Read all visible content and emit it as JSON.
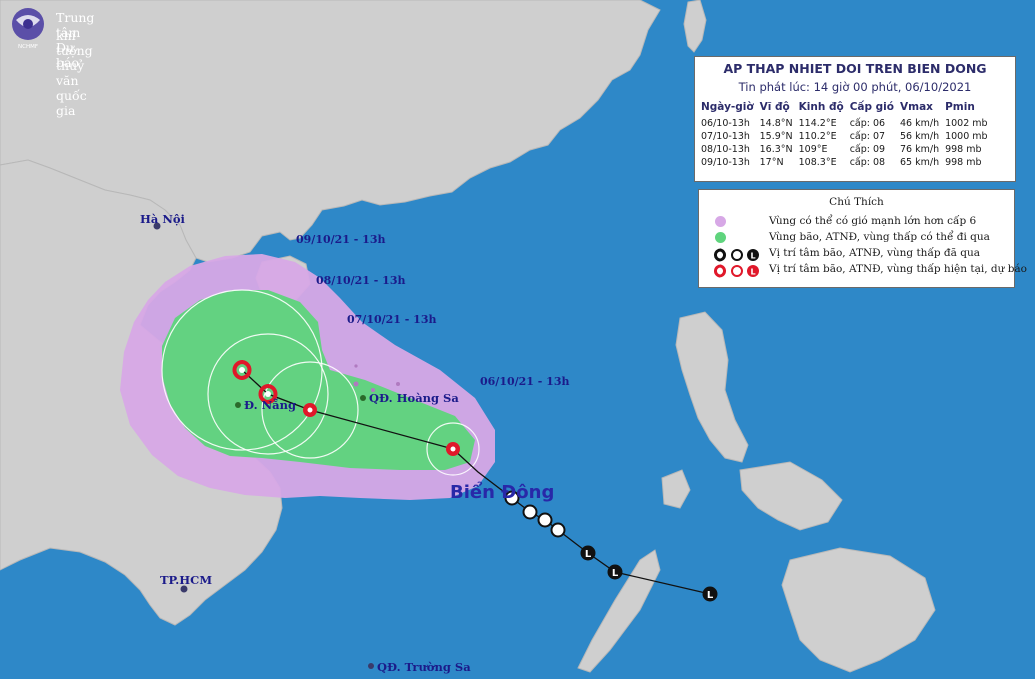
{
  "colors": {
    "sea": "#2e88c8",
    "land": "#cfcfcf",
    "strong_wind_zone": "#d7a8e6",
    "storm_zone": "#5fd47d",
    "past_track": "#111111",
    "current_forecast": "#e0182a",
    "label_text": "#1b1b8a"
  },
  "header": {
    "line1": "Trung tâm Dự báo",
    "line2": "khí tượng thuỷ văn quốc gia",
    "logo_text": "NCHMF"
  },
  "info_panel": {
    "title": "AP THAP NHIET DOI TREN BIEN DONG",
    "issued": "Tin phát lúc: 14 giờ 00 phút, 06/10/2021",
    "columns": [
      "Ngày-giờ",
      "Vĩ độ",
      "Kinh độ",
      "Cấp gió",
      "Vmax",
      "Pmin"
    ],
    "rows": [
      [
        "06/10-13h",
        "14.8°N",
        "114.2°E",
        "cấp: 06",
        "46 km/h",
        "1002 mb"
      ],
      [
        "07/10-13h",
        "15.9°N",
        "110.2°E",
        "cấp: 07",
        "56 km/h",
        "1000 mb"
      ],
      [
        "08/10-13h",
        "16.3°N",
        "109°E",
        "cấp: 09",
        "76 km/h",
        "998 mb"
      ],
      [
        "09/10-13h",
        "17°N",
        "108.3°E",
        "cấp: 08",
        "65 km/h",
        "998 mb"
      ]
    ]
  },
  "legend": {
    "title": "Chú Thích",
    "items": [
      {
        "icon": "purple-zone-swatch",
        "text": "Vùng có thể có gió mạnh lớn hơn cấp 6"
      },
      {
        "icon": "green-zone-swatch",
        "text": "Vùng bão, ATNĐ, vùng thấp có thể đi qua"
      },
      {
        "icon": "past-position-icons",
        "text": "Vị trí tâm bão, ATNĐ, vùng thấp đã qua"
      },
      {
        "icon": "current-position-icons",
        "text": "Vị trí tâm bão, ATNĐ, vùng thấp hiện tại, dự báo"
      }
    ]
  },
  "map_labels": {
    "forecast_dates": [
      "09/10/21 - 13h",
      "08/10/21 - 13h",
      "07/10/21 - 13h",
      "06/10/21 - 13h"
    ],
    "cities": {
      "hanoi": "Hà Nội",
      "danang": "Đ. Nẵng",
      "hcm": "TP.HCM",
      "hoang_sa": "QĐ. Hoàng Sa",
      "truong_sa": "QĐ. Trường Sa"
    },
    "sea_name": "Biển Đông"
  },
  "track": {
    "forecast_points": [
      {
        "time": "06/10-13h",
        "lat": 14.8,
        "lon": 114.2
      },
      {
        "time": "07/10-13h",
        "lat": 15.9,
        "lon": 110.2
      },
      {
        "time": "08/10-13h",
        "lat": 16.3,
        "lon": 109.0
      },
      {
        "time": "09/10-13h",
        "lat": 17.0,
        "lon": 108.3
      }
    ]
  }
}
